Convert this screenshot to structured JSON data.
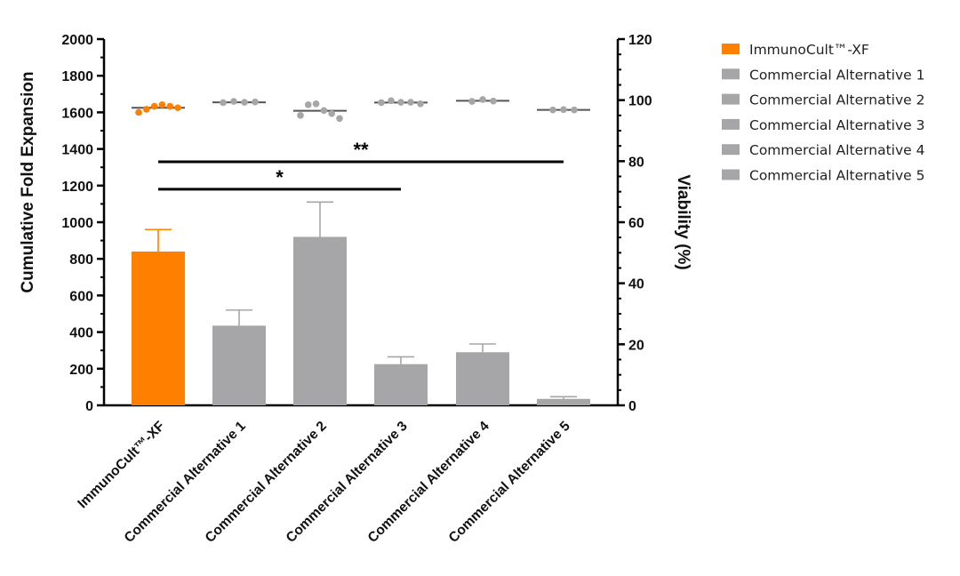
{
  "chart_data": {
    "type": "bar",
    "categories": [
      "ImmunoCult™-XF",
      "Commercial Alternative 1",
      "Commercial Alternative 2",
      "Commercial Alternative 3",
      "Commercial Alternative 4",
      "Commercial Alternative 5"
    ],
    "colors": [
      "#FF8000",
      "#A6A6A8",
      "#A6A6A8",
      "#A6A6A8",
      "#A6A6A8",
      "#A6A6A8"
    ],
    "series": [
      {
        "name": "Cumulative Fold Expansion",
        "axis": "left",
        "values": [
          840,
          435,
          920,
          225,
          290,
          35
        ],
        "error": [
          120,
          85,
          190,
          40,
          45,
          12
        ]
      },
      {
        "name": "Viability (%)",
        "axis": "right",
        "type": "scatter",
        "means": [
          97.5,
          99.3,
          96.5,
          99.2,
          99.8,
          96.8
        ],
        "points": [
          [
            96,
            97,
            98,
            98.5,
            98,
            97.5
          ],
          [
            99.2,
            99.6,
            99.3,
            99.4
          ],
          [
            95,
            98.5,
            98.8,
            96.6,
            95.6,
            94
          ],
          [
            99.2,
            99.8,
            99.3,
            99.3,
            98.8
          ],
          [
            99.6,
            100.2,
            99.7
          ],
          [
            96.8,
            96.9,
            96.8
          ]
        ]
      }
    ],
    "ylabel": "Cumulative Fold Expansion",
    "ylim": [
      0,
      2000
    ],
    "yticks": [
      "0",
      "200",
      "400",
      "600",
      "800",
      "1000",
      "1200",
      "1400",
      "1600",
      "1800",
      "2000"
    ],
    "y2label": "Viability (%)",
    "y2lim": [
      0,
      120
    ],
    "y2ticks": [
      "0",
      "20",
      "40",
      "60",
      "80",
      "100",
      "120"
    ],
    "significance": [
      {
        "from": 0,
        "to": 5,
        "label": "**",
        "level": 1330
      },
      {
        "from": 0,
        "to": 3,
        "label": "*",
        "level": 1180
      }
    ],
    "legend": {
      "placement": "right",
      "entries": [
        {
          "label": "ImmunoCult™-XF",
          "color": "#FF8000"
        },
        {
          "label": "Commercial Alternative 1",
          "color": "#A6A6A8"
        },
        {
          "label": "Commercial Alternative 2",
          "color": "#A6A6A8"
        },
        {
          "label": "Commercial Alternative 3",
          "color": "#A6A6A8"
        },
        {
          "label": "Commercial Alternative 4",
          "color": "#A6A6A8"
        },
        {
          "label": "Commercial Alternative 5",
          "color": "#A6A6A8"
        }
      ]
    },
    "grid": false
  }
}
